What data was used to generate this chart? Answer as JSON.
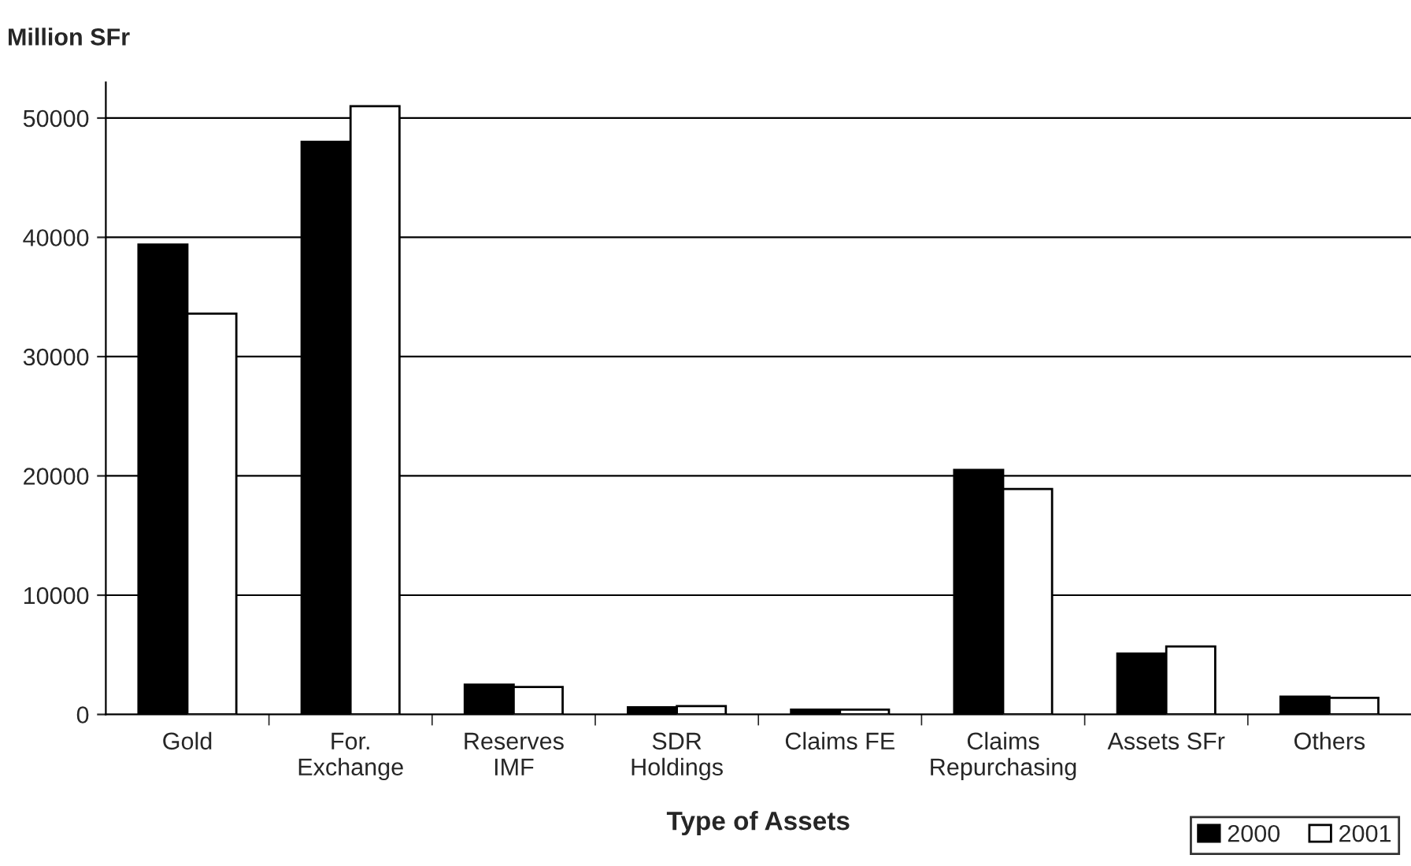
{
  "chart_data": {
    "type": "bar",
    "ylabel": "Million SFr",
    "xlabel": "Type of Assets",
    "categories": [
      "Gold",
      "For.\nExchange",
      "Reserves\nIMF",
      "SDR\nHoldings",
      "Claims FE",
      "Claims\nRepurchasing",
      "Assets SFr",
      "Others"
    ],
    "series": [
      {
        "name": "2000",
        "color": "#000000",
        "values": [
          39400,
          48000,
          2500,
          600,
          400,
          20500,
          5100,
          1500
        ]
      },
      {
        "name": "2001",
        "color": "#ffffff",
        "values": [
          33600,
          51000,
          2300,
          700,
          400,
          18900,
          5700,
          1400
        ]
      }
    ],
    "ylim": [
      0,
      53000
    ],
    "yticks": [
      0,
      10000,
      20000,
      30000,
      40000,
      50000
    ],
    "grid": "y",
    "legend": "bottom right"
  }
}
